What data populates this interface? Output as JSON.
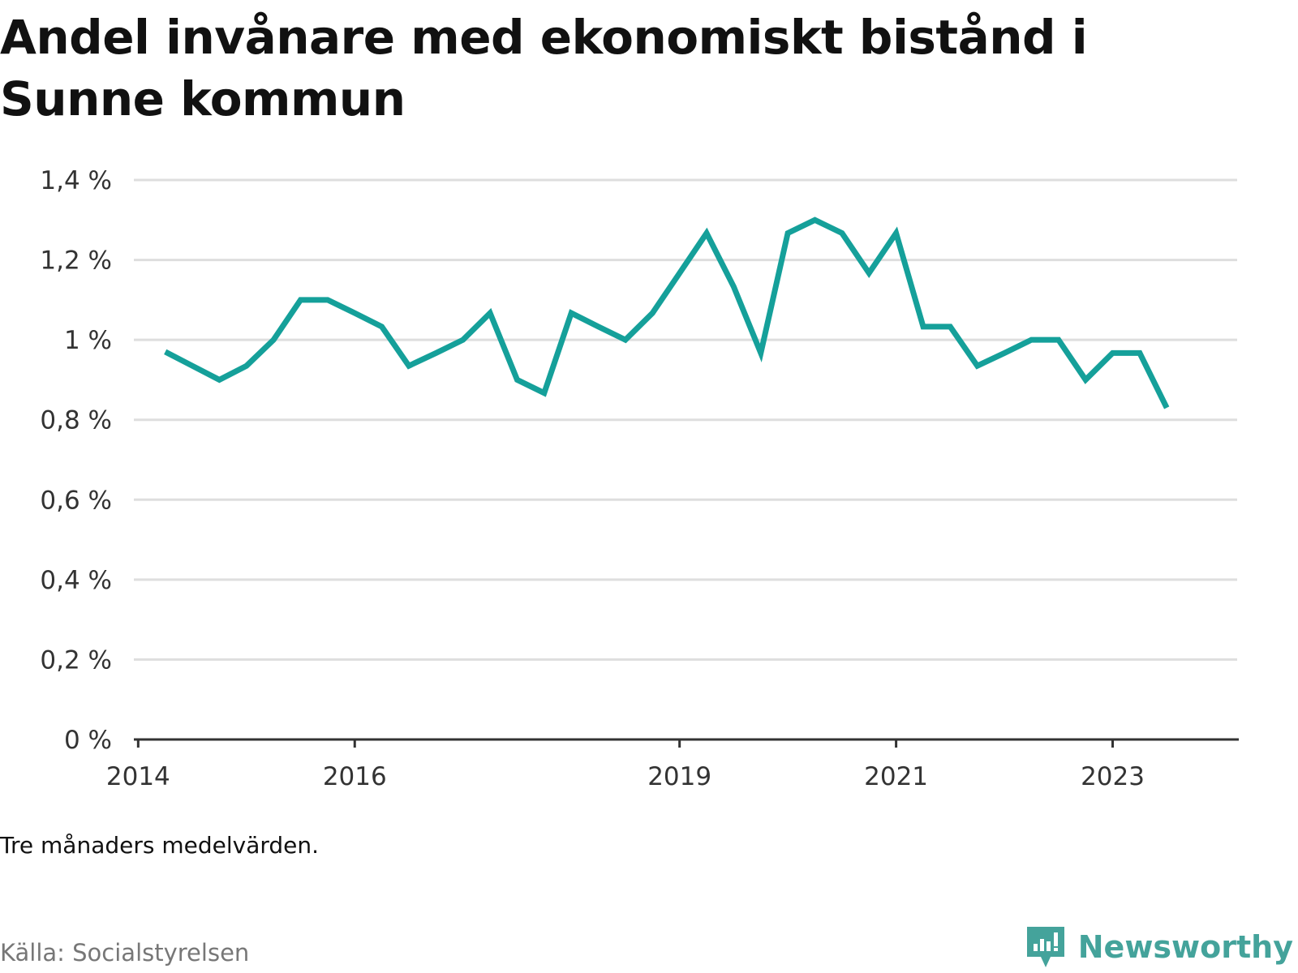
{
  "title": "Andel invånare med ekonomiskt bistånd i Sunne kommun",
  "note": "Tre månaders medelvärden.",
  "source": "Källa: Socialstyrelsen",
  "brand": {
    "name": "Newsworthy",
    "icon": "newsworthy-logo-icon",
    "color": "#44a39b"
  },
  "colors": {
    "line": "#15a09a",
    "grid": "#dedede",
    "axis": "#333333"
  },
  "chart_data": {
    "type": "line",
    "title": "Andel invånare med ekonomiskt bistånd i Sunne kommun",
    "xlabel": "",
    "ylabel": "",
    "x_ticks": [
      "2014",
      "2016",
      "2019",
      "2021",
      "2023"
    ],
    "y_ticks": [
      "0 %",
      "0,2 %",
      "0,4 %",
      "0,6 %",
      "0,8 %",
      "1 %",
      "1,2 %",
      "1,4 %"
    ],
    "ylim": [
      0,
      1.4
    ],
    "grid": true,
    "series": [
      {
        "values": [
          {
            "x": "2014-04",
            "y": 0.97
          },
          {
            "x": "2014-07",
            "y": 0.935
          },
          {
            "x": "2014-10",
            "y": 0.9
          },
          {
            "x": "2015-01",
            "y": 0.935
          },
          {
            "x": "2015-04",
            "y": 1.0
          },
          {
            "x": "2015-07",
            "y": 1.1
          },
          {
            "x": "2015-10",
            "y": 1.1
          },
          {
            "x": "2016-01",
            "y": 1.067
          },
          {
            "x": "2016-04",
            "y": 1.033
          },
          {
            "x": "2016-07",
            "y": 0.935
          },
          {
            "x": "2016-10",
            "y": 0.967
          },
          {
            "x": "2017-01",
            "y": 1.0
          },
          {
            "x": "2017-04",
            "y": 1.067
          },
          {
            "x": "2017-07",
            "y": 0.9
          },
          {
            "x": "2017-10",
            "y": 0.867
          },
          {
            "x": "2018-01",
            "y": 1.067
          },
          {
            "x": "2018-04",
            "y": 1.033
          },
          {
            "x": "2018-07",
            "y": 1.0
          },
          {
            "x": "2018-10",
            "y": 1.067
          },
          {
            "x": "2019-01",
            "y": 1.167
          },
          {
            "x": "2019-04",
            "y": 1.267
          },
          {
            "x": "2019-07",
            "y": 1.133
          },
          {
            "x": "2019-10",
            "y": 0.967
          },
          {
            "x": "2020-01",
            "y": 1.267
          },
          {
            "x": "2020-04",
            "y": 1.3
          },
          {
            "x": "2020-07",
            "y": 1.267
          },
          {
            "x": "2020-10",
            "y": 1.167
          },
          {
            "x": "2021-01",
            "y": 1.267
          },
          {
            "x": "2021-04",
            "y": 1.033
          },
          {
            "x": "2021-07",
            "y": 1.033
          },
          {
            "x": "2021-10",
            "y": 0.935
          },
          {
            "x": "2022-01",
            "y": 0.967
          },
          {
            "x": "2022-04",
            "y": 1.0
          },
          {
            "x": "2022-07",
            "y": 1.0
          },
          {
            "x": "2022-10",
            "y": 0.9
          },
          {
            "x": "2023-01",
            "y": 0.967
          },
          {
            "x": "2023-04",
            "y": 0.967
          },
          {
            "x": "2023-07",
            "y": 0.83
          }
        ]
      }
    ]
  }
}
